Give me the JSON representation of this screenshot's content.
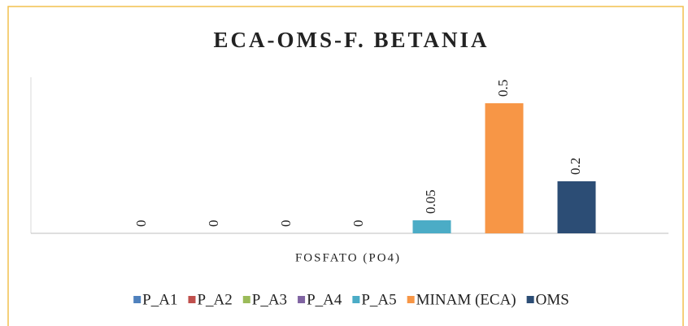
{
  "chart_data": {
    "type": "bar",
    "title": "ECA-OMS-F. BETANIA",
    "categories": [
      "FOSFATO (PO4)"
    ],
    "series": [
      {
        "name": "P_A1",
        "color": "#4f81bd",
        "values": [
          0
        ]
      },
      {
        "name": "P_A2",
        "color": "#c0504d",
        "values": [
          0
        ]
      },
      {
        "name": "P_A3",
        "color": "#9bbb59",
        "values": [
          0
        ]
      },
      {
        "name": "P_A4",
        "color": "#8064a2",
        "values": [
          0
        ]
      },
      {
        "name": "P_A5",
        "color": "#4bacc6",
        "values": [
          0.05
        ]
      },
      {
        "name": "MINAM (ECA)",
        "color": "#f79646",
        "values": [
          0.5
        ]
      },
      {
        "name": "OMS",
        "color": "#2c4d75",
        "values": [
          0.2
        ]
      }
    ],
    "ylim": [
      0,
      0.6
    ],
    "legend": "bottom"
  }
}
